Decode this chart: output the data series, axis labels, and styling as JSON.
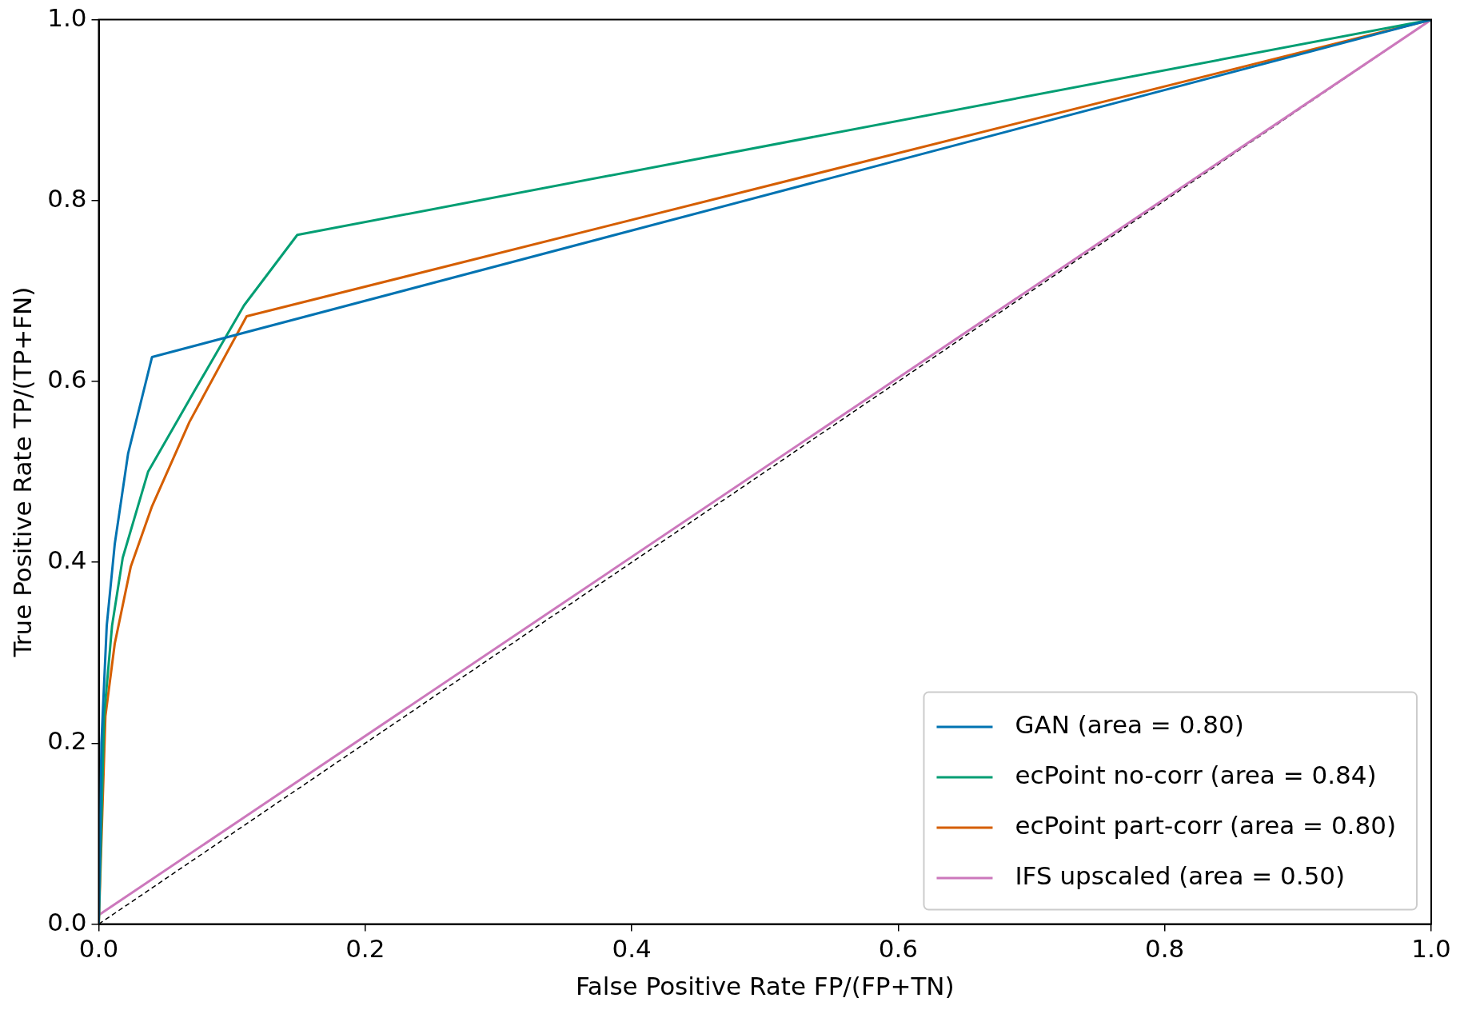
{
  "chart_data": {
    "type": "line",
    "xlabel": "False Positive Rate FP/(FP+TN)",
    "ylabel": "True Positive Rate TP/(TP+FN)",
    "xlim": [
      0,
      1
    ],
    "ylim": [
      0,
      1
    ],
    "xticks": [
      {
        "value": 0,
        "label": "0.0"
      },
      {
        "value": 0.2,
        "label": "0.2"
      },
      {
        "value": 0.4,
        "label": "0.4"
      },
      {
        "value": 0.6,
        "label": "0.6"
      },
      {
        "value": 0.8,
        "label": "0.8"
      },
      {
        "value": 1,
        "label": "1.0"
      }
    ],
    "yticks": [
      {
        "value": 0,
        "label": "0.0"
      },
      {
        "value": 0.2,
        "label": "0.2"
      },
      {
        "value": 0.4,
        "label": "0.4"
      },
      {
        "value": 0.6,
        "label": "0.6"
      },
      {
        "value": 0.8,
        "label": "0.8"
      },
      {
        "value": 1,
        "label": "1.0"
      }
    ],
    "grid": false,
    "legend": "bottom right",
    "marker": "none",
    "series": [
      {
        "name": "GAN (area = 0.80)",
        "color": "#0173b2",
        "x": [
          0,
          0.002,
          0.006,
          0.012,
          0.022,
          0.04,
          1
        ],
        "values": [
          0,
          0.2,
          0.33,
          0.42,
          0.52,
          0.627,
          1
        ]
      },
      {
        "name": "ecPoint no-corr (area = 0.84)",
        "color": "#029e73",
        "x": [
          0,
          0.004,
          0.01,
          0.018,
          0.037,
          0.072,
          0.109,
          0.149,
          1
        ],
        "values": [
          0,
          0.23,
          0.33,
          0.405,
          0.5,
          0.59,
          0.684,
          0.762,
          1
        ]
      },
      {
        "name": "ecPoint part-corr (area = 0.80)",
        "color": "#d55e00",
        "x": [
          0,
          0.005,
          0.012,
          0.024,
          0.04,
          0.068,
          0.111,
          1
        ],
        "values": [
          0,
          0.23,
          0.31,
          0.395,
          0.462,
          0.555,
          0.672,
          1
        ]
      },
      {
        "name": "IFS upscaled (area = 0.50)",
        "color": "#cc78bc",
        "x": [
          0,
          1
        ],
        "values": [
          0.01,
          1
        ]
      },
      {
        "color": "#000000",
        "line_style": "dashed",
        "x": [
          0,
          1
        ],
        "values": [
          0,
          1
        ]
      }
    ]
  }
}
